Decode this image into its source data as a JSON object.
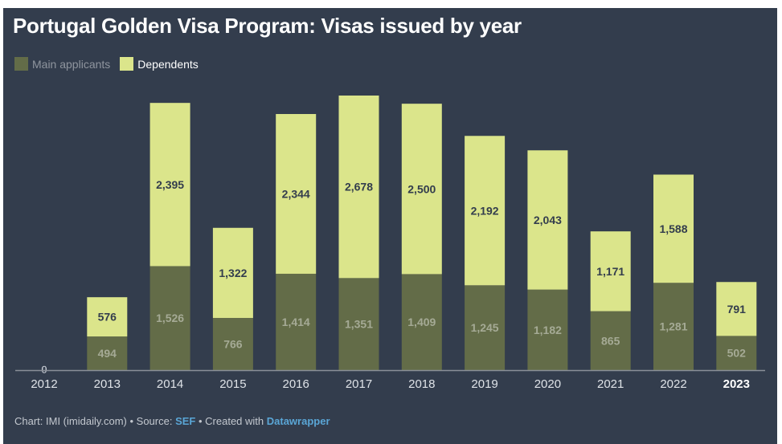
{
  "chart_data": {
    "type": "bar",
    "stacked": true,
    "title": "Portugal Golden Visa Program: Visas issued by year",
    "xlabel": "",
    "ylabel": "",
    "categories": [
      "2012",
      "2013",
      "2014",
      "2015",
      "2016",
      "2017",
      "2018",
      "2019",
      "2020",
      "2021",
      "2022",
      "2023"
    ],
    "highlight_category": "2023",
    "series": [
      {
        "name": "Main applicants",
        "color": "#636c48",
        "label_color": "#a5aa95",
        "values": [
          0,
          494,
          1526,
          766,
          1414,
          1351,
          1409,
          1245,
          1182,
          865,
          1281,
          502
        ],
        "labels": [
          "0",
          "494",
          "1,526",
          "766",
          "1,414",
          "1,351",
          "1,409",
          "1,245",
          "1,182",
          "865",
          "1,281",
          "502"
        ]
      },
      {
        "name": "Dependents",
        "color": "#dbe58b",
        "label_color": "#333d4d",
        "values": [
          0,
          576,
          2395,
          1322,
          2344,
          2678,
          2500,
          2192,
          2043,
          1171,
          1588,
          791
        ],
        "labels": [
          "",
          "576",
          "2,395",
          "1,322",
          "2,344",
          "2,678",
          "2,500",
          "2,192",
          "2,043",
          "1,171",
          "1,588",
          "791"
        ]
      }
    ],
    "ylim": [
      0,
      4029
    ],
    "grid": false,
    "legend": "top-left"
  },
  "legend": {
    "main_label": "Main applicants",
    "dep_label": "Dependents",
    "main_color": "#636c48",
    "dep_color": "#dbe58b"
  },
  "footer": {
    "prefix": "Chart: IMI (imidaily.com) • Source: ",
    "source_link": "SEF",
    "middle": " • Created with ",
    "tool_link": "Datawrapper"
  },
  "colors": {
    "background": "#333d4d",
    "axis": "#8a8f98",
    "tick_label": "#dfe3e8"
  }
}
